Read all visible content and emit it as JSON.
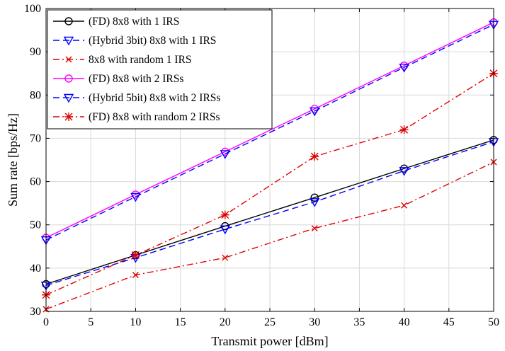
{
  "chart_data": {
    "type": "line",
    "xlabel": "Transmit power [dBm]",
    "ylabel": "Sum rate [bps/Hz]",
    "xlim": [
      0,
      50
    ],
    "ylim": [
      30,
      100
    ],
    "xticks": [
      0,
      5,
      10,
      15,
      20,
      25,
      30,
      35,
      40,
      45,
      50
    ],
    "yticks": [
      30,
      40,
      50,
      60,
      70,
      80,
      90,
      100
    ],
    "grid": true,
    "legend_position": "top-left",
    "x": [
      0,
      10,
      20,
      30,
      40,
      50
    ],
    "series": [
      {
        "name": "(FD) 8x8 with 1 IRS",
        "values": [
          36.3,
          43.0,
          49.7,
          56.3,
          63.0,
          69.6
        ],
        "color": "#000000",
        "line": "solid",
        "marker": "circle"
      },
      {
        "name": "(Hybrid 3bit) 8x8 with 1 IRS",
        "values": [
          36.0,
          42.4,
          49.0,
          55.3,
          62.5,
          69.2
        ],
        "color": "#0000ff",
        "line": "dashed",
        "marker": "triangle-down"
      },
      {
        "name": "8x8 with random 1 IRS",
        "values": [
          30.5,
          38.4,
          42.4,
          49.2,
          54.5,
          64.5
        ],
        "color": "#e00000",
        "line": "dashdot",
        "marker": "x"
      },
      {
        "name": "(FD) 8x8 with 2 IRSs",
        "values": [
          47.0,
          57.0,
          66.9,
          76.8,
          86.8,
          96.8
        ],
        "color": "#ff00ff",
        "line": "solid",
        "marker": "circle"
      },
      {
        "name": "(Hybrid 5bit) 8x8 with 2 IRSs",
        "values": [
          46.5,
          56.5,
          66.4,
          76.3,
          86.4,
          96.3
        ],
        "color": "#0000ff",
        "line": "dashed",
        "marker": "triangle-down"
      },
      {
        "name": "(FD) 8x8 with random 2 IRSs",
        "values": [
          33.8,
          43.0,
          52.3,
          65.8,
          72.0,
          85.0
        ],
        "color": "#e00000",
        "line": "dashdot",
        "marker": "asterisk"
      }
    ]
  }
}
